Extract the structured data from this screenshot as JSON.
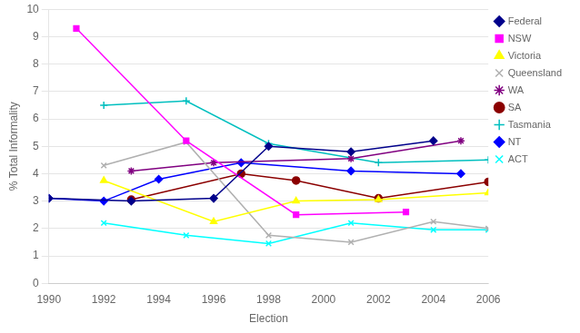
{
  "chart_data": {
    "type": "line",
    "xlabel": "Election",
    "ylabel": "% Total Informality",
    "xlim": [
      1990,
      2006
    ],
    "ylim": [
      0,
      10
    ],
    "xticks": [
      1990,
      1992,
      1994,
      1996,
      1998,
      2000,
      2002,
      2004,
      2006
    ],
    "yticks": [
      0,
      1,
      2,
      3,
      4,
      5,
      6,
      7,
      8,
      9,
      10
    ],
    "grid": "y",
    "legend": "right",
    "line_style": "solid",
    "series": [
      {
        "name": "Federal",
        "color": "#00008B",
        "marker": "diamond",
        "x": [
          1990,
          1993,
          1996,
          1998,
          2001,
          2004
        ],
        "values": [
          3.1,
          3.0,
          3.1,
          5.0,
          4.8,
          5.2
        ]
      },
      {
        "name": "NSW",
        "color": "#FF00FF",
        "marker": "square",
        "x": [
          1991,
          1995,
          1999,
          2003
        ],
        "values": [
          9.3,
          5.2,
          2.5,
          2.6
        ]
      },
      {
        "name": "Victoria",
        "color": "#FFFF00",
        "marker": "triangle",
        "x": [
          1992,
          1996,
          1999,
          2002,
          2006
        ],
        "values": [
          3.75,
          2.25,
          3.0,
          3.05,
          3.3
        ]
      },
      {
        "name": "Queensland",
        "color": "#b0b0b0",
        "marker": "x",
        "x": [
          1992,
          1995,
          1998,
          2001,
          2004,
          2006
        ],
        "values": [
          4.3,
          5.15,
          1.75,
          1.5,
          2.25,
          2.0
        ]
      },
      {
        "name": "WA",
        "color": "#800080",
        "marker": "star",
        "x": [
          1993,
          1996,
          2001,
          2005
        ],
        "values": [
          4.1,
          4.4,
          4.55,
          5.2
        ]
      },
      {
        "name": "SA",
        "color": "#8B0000",
        "marker": "circle",
        "x": [
          1993,
          1997,
          1999,
          2002,
          2006
        ],
        "values": [
          3.05,
          4.0,
          3.75,
          3.1,
          3.7
        ]
      },
      {
        "name": "Tasmania",
        "color": "#00BFBF",
        "marker": "plus",
        "x": [
          1992,
          1995,
          1998,
          2002,
          2006
        ],
        "values": [
          6.5,
          6.65,
          5.1,
          4.4,
          4.5
        ]
      },
      {
        "name": "NT",
        "color": "#0000FF",
        "marker": "diamond",
        "x": [
          1990,
          1992,
          1994,
          1997,
          2001,
          2005
        ],
        "values": [
          3.1,
          3.0,
          3.8,
          4.4,
          4.1,
          4.0
        ]
      },
      {
        "name": "ACT",
        "color": "#00FFFF",
        "marker": "x",
        "x": [
          1992,
          1995,
          1998,
          2001,
          2004,
          2006
        ],
        "values": [
          2.2,
          1.75,
          1.45,
          2.2,
          1.95,
          1.95
        ]
      }
    ]
  }
}
